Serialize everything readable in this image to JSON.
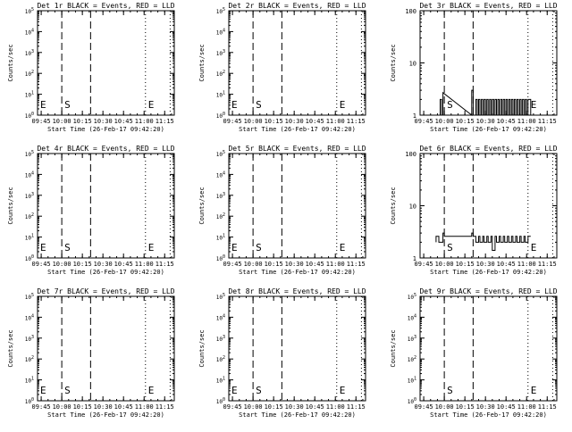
{
  "chart_data": [
    {
      "id": "det1r",
      "title": "Det 1r BLACK = Events, RED = LLD",
      "type": "line",
      "ylabel": "Counts/sec",
      "xlabel": "Start Time (26-Feb-17 09:42:20)",
      "y_scale": "log",
      "ylim": [
        1,
        100000
      ],
      "ytick_labels": [
        "10^0",
        "10^1",
        "10^2",
        "10^3",
        "10^4",
        "10^5"
      ],
      "xtick_labels": [
        "09:45",
        "10:00",
        "10:15",
        "10:30",
        "10:45",
        "11:00",
        "11:15"
      ],
      "xlim": [
        "09:42:20",
        "11:22:00"
      ],
      "markers": [
        {
          "label": "E",
          "time": "09:42:20",
          "style": "dotted"
        },
        {
          "label": "S",
          "time": "10:00",
          "style": "dashed"
        },
        {
          "label": "",
          "time": "10:21",
          "style": "dashed"
        },
        {
          "label": "E",
          "time": "11:01",
          "style": "dotted"
        },
        {
          "label": "",
          "time": "11:19",
          "style": "dotted"
        }
      ],
      "series": []
    },
    {
      "id": "det2r",
      "title": "Det 2r BLACK = Events, RED = LLD",
      "type": "line",
      "ylabel": "Counts/sec",
      "xlabel": "Start Time (26-Feb-17 09:42:20)",
      "y_scale": "log",
      "ylim": [
        1,
        100000
      ],
      "ytick_labels": [
        "10^0",
        "10^1",
        "10^2",
        "10^3",
        "10^4",
        "10^5"
      ],
      "xtick_labels": [
        "09:45",
        "10:00",
        "10:15",
        "10:30",
        "10:45",
        "11:00",
        "11:15"
      ],
      "xlim": [
        "09:42:20",
        "11:22:00"
      ],
      "markers": [
        {
          "label": "E",
          "time": "09:42:20",
          "style": "dotted"
        },
        {
          "label": "S",
          "time": "10:00",
          "style": "dashed"
        },
        {
          "label": "",
          "time": "10:21",
          "style": "dashed"
        },
        {
          "label": "E",
          "time": "11:01",
          "style": "dotted"
        },
        {
          "label": "",
          "time": "11:19",
          "style": "dotted"
        }
      ],
      "series": []
    },
    {
      "id": "det3r",
      "title": "Det 3r BLACK = Events, RED = LLD",
      "type": "line",
      "ylabel": "Counts/sec",
      "xlabel": "Start Time (26-Feb-17 09:42:20)",
      "y_scale": "log",
      "ylim": [
        1,
        100
      ],
      "ytick_labels": [
        "1",
        "10",
        "100"
      ],
      "xtick_labels": [
        "09:45",
        "10:00",
        "10:15",
        "10:30",
        "10:45",
        "11:00",
        "11:15"
      ],
      "xlim": [
        "09:42:20",
        "11:22:00"
      ],
      "markers": [
        {
          "label": "",
          "time": "09:42:20",
          "style": "dotted"
        },
        {
          "label": "S",
          "time": "10:00",
          "style": "dashed"
        },
        {
          "label": "",
          "time": "10:21",
          "style": "dashed"
        },
        {
          "label": "E",
          "time": "11:01",
          "style": "dotted"
        },
        {
          "label": "",
          "time": "11:19",
          "style": "dotted"
        }
      ],
      "series": [
        {
          "color": "#000000",
          "x": [
            "09:57",
            "09:57",
            "09:58",
            "09:58",
            "09:59",
            "09:59",
            "10:20",
            "10:20",
            "10:21",
            "10:21",
            "10:23",
            "10:23",
            "10:24",
            "10:24",
            "10:25",
            "10:25",
            "10:26",
            "10:26",
            "10:27",
            "10:27",
            "10:28",
            "10:28",
            "10:29",
            "10:29",
            "10:30",
            "10:30",
            "10:31",
            "10:31",
            "10:32",
            "10:32",
            "10:33",
            "10:33",
            "10:34",
            "10:34",
            "10:35",
            "10:35",
            "10:36",
            "10:36",
            "10:37",
            "10:37",
            "10:38",
            "10:38",
            "10:39",
            "10:39",
            "10:40",
            "10:40",
            "10:41",
            "10:41",
            "10:42",
            "10:42",
            "10:43",
            "10:43",
            "10:44",
            "10:44",
            "10:45",
            "10:45",
            "10:46",
            "10:46",
            "10:47",
            "10:47",
            "10:48",
            "10:48",
            "10:49",
            "10:49",
            "10:50",
            "10:50",
            "10:51",
            "10:51",
            "10:52",
            "10:52",
            "10:53",
            "10:53",
            "10:54",
            "10:54",
            "10:55",
            "10:55",
            "10:56",
            "10:56",
            "10:57",
            "10:57",
            "10:58",
            "10:58",
            "10:59",
            "10:59",
            "11:00",
            "11:00",
            "11:01",
            "11:01",
            "11:03",
            "11:03"
          ],
          "y": [
            1,
            2,
            2,
            1,
            1,
            2.7,
            1,
            3,
            3,
            1,
            1,
            2,
            2,
            1,
            1,
            2,
            2,
            1,
            1,
            2,
            2,
            1,
            1,
            2,
            2,
            1,
            1,
            2,
            2,
            1,
            1,
            2,
            2,
            1,
            1,
            2,
            2,
            1,
            1,
            2,
            2,
            1,
            1,
            2,
            2,
            1,
            1,
            2,
            2,
            1,
            1,
            2,
            2,
            1,
            1,
            2,
            2,
            1,
            1,
            2,
            2,
            1,
            1,
            2,
            2,
            1,
            1,
            2,
            2,
            1,
            1,
            2,
            2,
            1,
            1,
            2,
            2,
            1,
            1,
            2,
            2,
            1,
            1,
            2,
            2,
            1,
            1,
            2,
            2,
            1
          ]
        }
      ]
    },
    {
      "id": "det4r",
      "title": "Det 4r BLACK = Events, RED = LLD",
      "type": "line",
      "ylabel": "Counts/sec",
      "xlabel": "Start Time (26-Feb-17 09:42:20)",
      "y_scale": "log",
      "ylim": [
        1,
        100000
      ],
      "ytick_labels": [
        "10^0",
        "10^1",
        "10^2",
        "10^3",
        "10^4",
        "10^5"
      ],
      "xtick_labels": [
        "09:45",
        "10:00",
        "10:15",
        "10:30",
        "10:45",
        "11:00",
        "11:15"
      ],
      "xlim": [
        "09:42:20",
        "11:22:00"
      ],
      "markers": [
        {
          "label": "E",
          "time": "09:42:20",
          "style": "dotted"
        },
        {
          "label": "S",
          "time": "10:00",
          "style": "dashed"
        },
        {
          "label": "",
          "time": "10:21",
          "style": "dashed"
        },
        {
          "label": "E",
          "time": "11:01",
          "style": "dotted"
        },
        {
          "label": "",
          "time": "11:19",
          "style": "dotted"
        }
      ],
      "series": []
    },
    {
      "id": "det5r",
      "title": "Det 5r BLACK = Events, RED = LLD",
      "type": "line",
      "ylabel": "Counts/sec",
      "xlabel": "Start Time (26-Feb-17 09:42:20)",
      "y_scale": "log",
      "ylim": [
        1,
        100000
      ],
      "ytick_labels": [
        "10^0",
        "10^1",
        "10^2",
        "10^3",
        "10^4",
        "10^5"
      ],
      "xtick_labels": [
        "09:45",
        "10:00",
        "10:15",
        "10:30",
        "10:45",
        "11:00",
        "11:15"
      ],
      "xlim": [
        "09:42:20",
        "11:22:00"
      ],
      "markers": [
        {
          "label": "E",
          "time": "09:42:20",
          "style": "dotted"
        },
        {
          "label": "S",
          "time": "10:00",
          "style": "dashed"
        },
        {
          "label": "",
          "time": "10:21",
          "style": "dashed"
        },
        {
          "label": "E",
          "time": "11:01",
          "style": "dotted"
        },
        {
          "label": "",
          "time": "11:19",
          "style": "dotted"
        }
      ],
      "series": []
    },
    {
      "id": "det6r",
      "title": "Det 6r BLACK = Events, RED = LLD",
      "type": "line",
      "ylabel": "Counts/sec",
      "xlabel": "Start Time (26-Feb-17 09:42:20)",
      "y_scale": "log",
      "ylim": [
        1,
        100
      ],
      "ytick_labels": [
        "1",
        "10",
        "100"
      ],
      "xtick_labels": [
        "09:45",
        "10:00",
        "10:15",
        "10:30",
        "10:45",
        "11:00",
        "11:15"
      ],
      "xlim": [
        "09:42:20",
        "11:22:00"
      ],
      "markers": [
        {
          "label": "",
          "time": "09:42:20",
          "style": "dotted"
        },
        {
          "label": "S",
          "time": "10:00",
          "style": "dashed"
        },
        {
          "label": "",
          "time": "10:21",
          "style": "dashed"
        },
        {
          "label": "E",
          "time": "11:01",
          "style": "dotted"
        },
        {
          "label": "",
          "time": "11:19",
          "style": "dotted"
        }
      ],
      "series": [
        {
          "color": "#000000",
          "x": [
            "09:54",
            "09:54",
            "09:56",
            "09:56",
            "09:59",
            "09:59",
            "10:00",
            "10:00",
            "10:20",
            "10:20",
            "10:21",
            "10:21",
            "10:23",
            "10:23",
            "10:25",
            "10:25",
            "10:26",
            "10:26",
            "10:28",
            "10:28",
            "10:29",
            "10:29",
            "10:31",
            "10:31",
            "10:32",
            "10:32",
            "10:34",
            "10:34",
            "10:35",
            "10:35",
            "10:37",
            "10:37",
            "10:38",
            "10:38",
            "10:40",
            "10:40",
            "10:41",
            "10:41",
            "10:43",
            "10:43",
            "10:44",
            "10:44",
            "10:46",
            "10:46",
            "10:47",
            "10:47",
            "10:49",
            "10:49",
            "10:50",
            "10:50",
            "10:52",
            "10:52",
            "10:53",
            "10:53",
            "10:55",
            "10:55",
            "10:56",
            "10:56",
            "10:58",
            "10:58",
            "10:59",
            "10:59",
            "11:01",
            "11:01",
            "11:03",
            "11:03"
          ],
          "y": [
            2,
            2.6,
            2.6,
            2,
            2,
            3,
            3,
            2.6,
            2.6,
            3,
            3,
            2.6,
            2.6,
            2,
            2,
            2.6,
            2.6,
            2,
            2,
            2.6,
            2.6,
            2,
            2,
            2.6,
            2.6,
            2,
            2,
            2.6,
            2.6,
            1.4,
            1.4,
            2.6,
            2.6,
            2,
            2,
            2.6,
            2.6,
            2,
            2,
            2.6,
            2.6,
            2,
            2,
            2.6,
            2.6,
            2,
            2,
            2.6,
            2.6,
            2,
            2,
            2.6,
            2.6,
            2,
            2,
            2.6,
            2.6,
            2,
            2,
            2.6,
            2.6,
            2,
            2,
            2.6,
            2.6,
            2.6
          ]
        }
      ]
    },
    {
      "id": "det7r",
      "title": "Det 7r BLACK = Events, RED = LLD",
      "type": "line",
      "ylabel": "Counts/sec",
      "xlabel": "Start Time (26-Feb-17 09:42:20)",
      "y_scale": "log",
      "ylim": [
        1,
        100000
      ],
      "ytick_labels": [
        "10^0",
        "10^1",
        "10^2",
        "10^3",
        "10^4",
        "10^5"
      ],
      "xtick_labels": [
        "09:45",
        "10:00",
        "10:15",
        "10:30",
        "10:45",
        "11:00",
        "11:15"
      ],
      "xlim": [
        "09:42:20",
        "11:22:00"
      ],
      "markers": [
        {
          "label": "E",
          "time": "09:42:20",
          "style": "dotted"
        },
        {
          "label": "S",
          "time": "10:00",
          "style": "dashed"
        },
        {
          "label": "",
          "time": "10:21",
          "style": "dashed"
        },
        {
          "label": "E",
          "time": "11:01",
          "style": "dotted"
        },
        {
          "label": "",
          "time": "11:19",
          "style": "dotted"
        }
      ],
      "series": []
    },
    {
      "id": "det8r",
      "title": "Det 8r BLACK = Events, RED = LLD",
      "type": "line",
      "ylabel": "Counts/sec",
      "xlabel": "Start Time (26-Feb-17 09:42:20)",
      "y_scale": "log",
      "ylim": [
        1,
        100000
      ],
      "ytick_labels": [
        "10^0",
        "10^1",
        "10^2",
        "10^3",
        "10^4",
        "10^5"
      ],
      "xtick_labels": [
        "09:45",
        "10:00",
        "10:15",
        "10:30",
        "10:45",
        "11:00",
        "11:15"
      ],
      "xlim": [
        "09:42:20",
        "11:22:00"
      ],
      "markers": [
        {
          "label": "E",
          "time": "09:42:20",
          "style": "dotted"
        },
        {
          "label": "S",
          "time": "10:00",
          "style": "dashed"
        },
        {
          "label": "",
          "time": "10:21",
          "style": "dashed"
        },
        {
          "label": "E",
          "time": "11:01",
          "style": "dotted"
        },
        {
          "label": "",
          "time": "11:19",
          "style": "dotted"
        }
      ],
      "series": []
    },
    {
      "id": "det9r",
      "title": "Det 9r BLACK = Events, RED = LLD",
      "type": "line",
      "ylabel": "Counts/sec",
      "xlabel": "Start Time (26-Feb-17 09:42:20)",
      "y_scale": "log",
      "ylim": [
        1,
        100000
      ],
      "ytick_labels": [
        "10^0",
        "10^1",
        "10^2",
        "10^3",
        "10^4",
        "10^5"
      ],
      "xtick_labels": [
        "09:45",
        "10:00",
        "10:15",
        "10:30",
        "10:45",
        "11:00",
        "11:15"
      ],
      "xlim": [
        "09:42:20",
        "11:22:00"
      ],
      "markers": [
        {
          "label": "",
          "time": "09:42:20",
          "style": "dotted"
        },
        {
          "label": "S",
          "time": "10:00",
          "style": "dashed"
        },
        {
          "label": "",
          "time": "10:21",
          "style": "dashed"
        },
        {
          "label": "E",
          "time": "11:01",
          "style": "dotted"
        },
        {
          "label": "",
          "time": "11:19",
          "style": "dotted"
        }
      ],
      "series": []
    }
  ]
}
